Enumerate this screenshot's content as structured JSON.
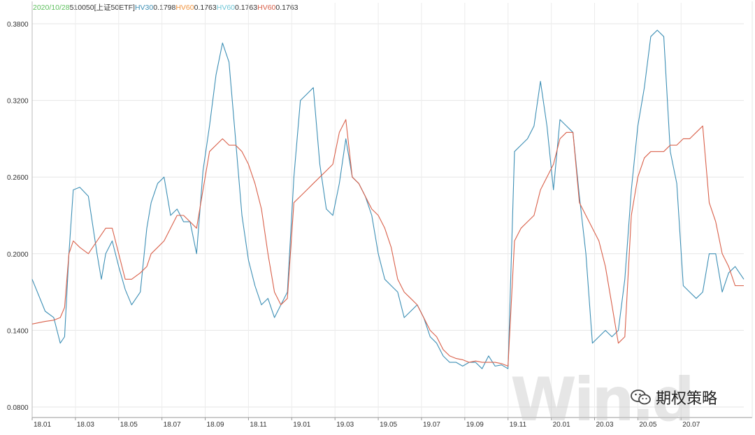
{
  "legend": {
    "date": "2020/10/28",
    "ticker": "510050[上证50ETF]",
    "items": [
      {
        "label": "HV30",
        "value": "0.1798",
        "color": "#3d8fb5"
      },
      {
        "label": "HV60",
        "value": "0.1763",
        "color": "#f0933d"
      },
      {
        "label": "HV60",
        "value": "0.1763",
        "color": "#6ec6d6"
      },
      {
        "label": "HV60",
        "value": "0.1763",
        "color": "#d9604a"
      }
    ]
  },
  "watermark": "Win.d",
  "badge": "期权策略",
  "chart_data": {
    "type": "line",
    "title": "",
    "xlabel": "",
    "ylabel": "",
    "ylim": [
      0.08,
      0.38
    ],
    "yticks": [
      "0.3800",
      "0.3200",
      "0.2600",
      "0.2000",
      "0.1400",
      "0.0800"
    ],
    "xticks": [
      "18.01",
      "18.03",
      "18.05",
      "18.07",
      "18.09",
      "18.11",
      "19.01",
      "19.03",
      "19.05",
      "19.07",
      "19.09",
      "19.11",
      "20.01",
      "20.03",
      "20.05",
      "20.07"
    ],
    "x_start": "18.01",
    "x_end": "20.10",
    "grid": true,
    "series": [
      {
        "name": "HV30",
        "color": "#3d8fb5",
        "x": [
          0,
          0.6,
          1.0,
          1.3,
          1.5,
          1.7,
          1.9,
          2.2,
          2.6,
          3.0,
          3.2,
          3.4,
          3.7,
          4.0,
          4.3,
          4.6,
          5.0,
          5.3,
          5.5,
          5.8,
          6.1,
          6.4,
          6.7,
          7.0,
          7.3,
          7.6,
          7.9,
          8.2,
          8.5,
          8.8,
          9.1,
          9.4,
          9.7,
          10.0,
          10.3,
          10.6,
          10.9,
          11.2,
          11.5,
          11.8,
          12.1,
          12.4,
          12.7,
          13.0,
          13.3,
          13.6,
          13.9,
          14.2,
          14.5,
          14.8,
          15.1,
          15.4,
          15.7,
          16.0,
          16.3,
          16.6,
          16.9,
          17.2,
          17.5,
          17.8,
          18.1,
          18.4,
          18.7,
          19.0,
          19.3,
          19.6,
          19.9,
          20.2,
          20.5,
          20.8,
          21.1,
          21.4,
          21.7,
          22.0,
          22.3,
          22.6,
          22.9,
          23.2,
          23.5,
          23.8,
          24.1,
          24.4,
          24.7,
          25.0,
          25.3,
          25.6,
          25.9,
          26.2,
          26.5,
          26.8,
          27.1,
          27.4,
          27.7,
          28.0,
          28.3,
          28.6,
          28.9,
          29.2,
          29.5,
          29.8,
          30.1,
          30.4,
          30.7,
          31.0,
          31.3,
          31.6,
          31.9,
          32.2,
          32.5,
          32.9
        ],
        "y": [
          0.18,
          0.155,
          0.15,
          0.13,
          0.135,
          0.2,
          0.25,
          0.252,
          0.245,
          0.2,
          0.18,
          0.2,
          0.21,
          0.19,
          0.172,
          0.16,
          0.17,
          0.22,
          0.24,
          0.255,
          0.26,
          0.23,
          0.235,
          0.225,
          0.225,
          0.2,
          0.265,
          0.3,
          0.34,
          0.365,
          0.35,
          0.29,
          0.23,
          0.195,
          0.175,
          0.16,
          0.165,
          0.15,
          0.16,
          0.17,
          0.26,
          0.32,
          0.325,
          0.33,
          0.27,
          0.235,
          0.23,
          0.255,
          0.29,
          0.26,
          0.255,
          0.245,
          0.23,
          0.2,
          0.18,
          0.175,
          0.17,
          0.15,
          0.155,
          0.16,
          0.15,
          0.135,
          0.13,
          0.12,
          0.115,
          0.115,
          0.112,
          0.115,
          0.115,
          0.11,
          0.12,
          0.112,
          0.113,
          0.11,
          0.28,
          0.285,
          0.29,
          0.3,
          0.335,
          0.3,
          0.25,
          0.305,
          0.3,
          0.295,
          0.245,
          0.2,
          0.13,
          0.135,
          0.14,
          0.135,
          0.14,
          0.18,
          0.25,
          0.3,
          0.33,
          0.37,
          0.375,
          0.37,
          0.28,
          0.255,
          0.175,
          0.17,
          0.165,
          0.17,
          0.2,
          0.2,
          0.17,
          0.185,
          0.19,
          0.18
        ]
      },
      {
        "name": "HV60",
        "color": "#d9604a",
        "x": [
          0,
          0.6,
          1.0,
          1.3,
          1.5,
          1.7,
          1.9,
          2.2,
          2.6,
          3.0,
          3.2,
          3.4,
          3.7,
          4.0,
          4.3,
          4.6,
          5.0,
          5.3,
          5.5,
          5.8,
          6.1,
          6.4,
          6.7,
          7.0,
          7.3,
          7.6,
          7.9,
          8.2,
          8.5,
          8.8,
          9.1,
          9.4,
          9.7,
          10.0,
          10.3,
          10.6,
          10.9,
          11.2,
          11.5,
          11.8,
          12.1,
          12.4,
          12.7,
          13.0,
          13.3,
          13.6,
          13.9,
          14.2,
          14.5,
          14.8,
          15.1,
          15.4,
          15.7,
          16.0,
          16.3,
          16.6,
          16.9,
          17.2,
          17.5,
          17.8,
          18.1,
          18.4,
          18.7,
          19.0,
          19.3,
          19.6,
          19.9,
          20.2,
          20.5,
          20.8,
          21.1,
          21.4,
          21.7,
          22.0,
          22.3,
          22.6,
          22.9,
          23.2,
          23.5,
          23.8,
          24.1,
          24.4,
          24.7,
          25.0,
          25.3,
          25.6,
          25.9,
          26.2,
          26.5,
          26.8,
          27.1,
          27.4,
          27.7,
          28.0,
          28.3,
          28.6,
          28.9,
          29.2,
          29.5,
          29.8,
          30.1,
          30.4,
          30.7,
          31.0,
          31.3,
          31.6,
          31.9,
          32.2,
          32.5,
          32.9
        ],
        "y": [
          0.145,
          0.147,
          0.148,
          0.15,
          0.158,
          0.2,
          0.21,
          0.205,
          0.2,
          0.21,
          0.215,
          0.22,
          0.22,
          0.2,
          0.18,
          0.18,
          0.185,
          0.19,
          0.2,
          0.205,
          0.21,
          0.22,
          0.23,
          0.23,
          0.225,
          0.22,
          0.25,
          0.28,
          0.285,
          0.29,
          0.285,
          0.285,
          0.28,
          0.27,
          0.255,
          0.235,
          0.2,
          0.17,
          0.16,
          0.165,
          0.24,
          0.245,
          0.25,
          0.255,
          0.26,
          0.265,
          0.27,
          0.295,
          0.305,
          0.26,
          0.255,
          0.245,
          0.235,
          0.23,
          0.22,
          0.205,
          0.18,
          0.17,
          0.165,
          0.16,
          0.15,
          0.14,
          0.135,
          0.125,
          0.12,
          0.118,
          0.117,
          0.115,
          0.116,
          0.115,
          0.115,
          0.115,
          0.114,
          0.112,
          0.21,
          0.22,
          0.225,
          0.23,
          0.25,
          0.26,
          0.27,
          0.29,
          0.295,
          0.295,
          0.24,
          0.23,
          0.22,
          0.21,
          0.19,
          0.16,
          0.13,
          0.135,
          0.23,
          0.26,
          0.275,
          0.28,
          0.28,
          0.28,
          0.285,
          0.285,
          0.29,
          0.29,
          0.295,
          0.3,
          0.24,
          0.225,
          0.2,
          0.19,
          0.175,
          0.175
        ]
      }
    ]
  }
}
